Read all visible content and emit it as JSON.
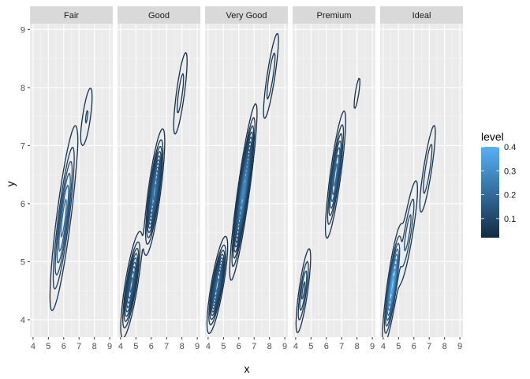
{
  "chart_data": {
    "type": "contour",
    "title": "",
    "xlabel": "x",
    "ylabel": "y",
    "xlim": [
      3.8,
      9.2
    ],
    "ylim": [
      3.7,
      9.1
    ],
    "x_ticks": [
      4,
      5,
      6,
      7,
      8,
      9
    ],
    "y_ticks": [
      4,
      5,
      6,
      7,
      8,
      9
    ],
    "grid": true,
    "facets": [
      {
        "label": "Fair",
        "levels": 6,
        "bumps": [
          {
            "x": 6.0,
            "y": 5.75,
            "sx": 0.42,
            "sy": 0.75,
            "rho": 0.85,
            "w": 1.0
          },
          {
            "x": 7.5,
            "y": 7.5,
            "sx": 0.25,
            "sy": 0.35,
            "rho": 0.7,
            "w": 0.28
          }
        ]
      },
      {
        "label": "Good",
        "levels": 12,
        "bumps": [
          {
            "x": 6.2,
            "y": 6.2,
            "sx": 0.28,
            "sy": 0.45,
            "rho": 0.8,
            "w": 1.0
          },
          {
            "x": 4.7,
            "y": 4.6,
            "sx": 0.3,
            "sy": 0.4,
            "rho": 0.8,
            "w": 0.75
          },
          {
            "x": 7.9,
            "y": 7.9,
            "sx": 0.28,
            "sy": 0.45,
            "rho": 0.8,
            "w": 0.18
          }
        ]
      },
      {
        "label": "Very Good",
        "levels": 16,
        "bumps": [
          {
            "x": 6.3,
            "y": 6.2,
            "sx": 0.35,
            "sy": 0.6,
            "rho": 0.9,
            "w": 1.0
          },
          {
            "x": 4.6,
            "y": 4.6,
            "sx": 0.28,
            "sy": 0.35,
            "rho": 0.8,
            "w": 0.7
          },
          {
            "x": 8.1,
            "y": 8.2,
            "sx": 0.3,
            "sy": 0.45,
            "rho": 0.85,
            "w": 0.15
          }
        ]
      },
      {
        "label": "Premium",
        "levels": 7,
        "bumps": [
          {
            "x": 6.6,
            "y": 6.5,
            "sx": 0.3,
            "sy": 0.5,
            "rho": 0.85,
            "w": 1.0
          },
          {
            "x": 4.5,
            "y": 4.5,
            "sx": 0.25,
            "sy": 0.38,
            "rho": 0.8,
            "w": 0.55
          },
          {
            "x": 8.0,
            "y": 7.9,
            "sx": 0.25,
            "sy": 0.35,
            "rho": 0.8,
            "w": 0.12
          }
        ]
      },
      {
        "label": "Ideal",
        "levels": 9,
        "bumps": [
          {
            "x": 4.6,
            "y": 4.6,
            "sx": 0.28,
            "sy": 0.45,
            "rho": 0.85,
            "w": 1.0
          },
          {
            "x": 5.6,
            "y": 5.5,
            "sx": 0.35,
            "sy": 0.5,
            "rho": 0.85,
            "w": 0.35
          },
          {
            "x": 6.9,
            "y": 6.6,
            "sx": 0.3,
            "sy": 0.45,
            "rho": 0.85,
            "w": 0.28
          }
        ]
      }
    ],
    "legend": {
      "title": "level",
      "ticks": [
        "0.1",
        "0.2",
        "0.3",
        "0.4"
      ],
      "tick_values": [
        0.1,
        0.2,
        0.3,
        0.4
      ],
      "range": [
        0.02,
        0.4
      ],
      "position": "right",
      "low_color": "#132B43",
      "high_color": "#56B1F7"
    }
  }
}
